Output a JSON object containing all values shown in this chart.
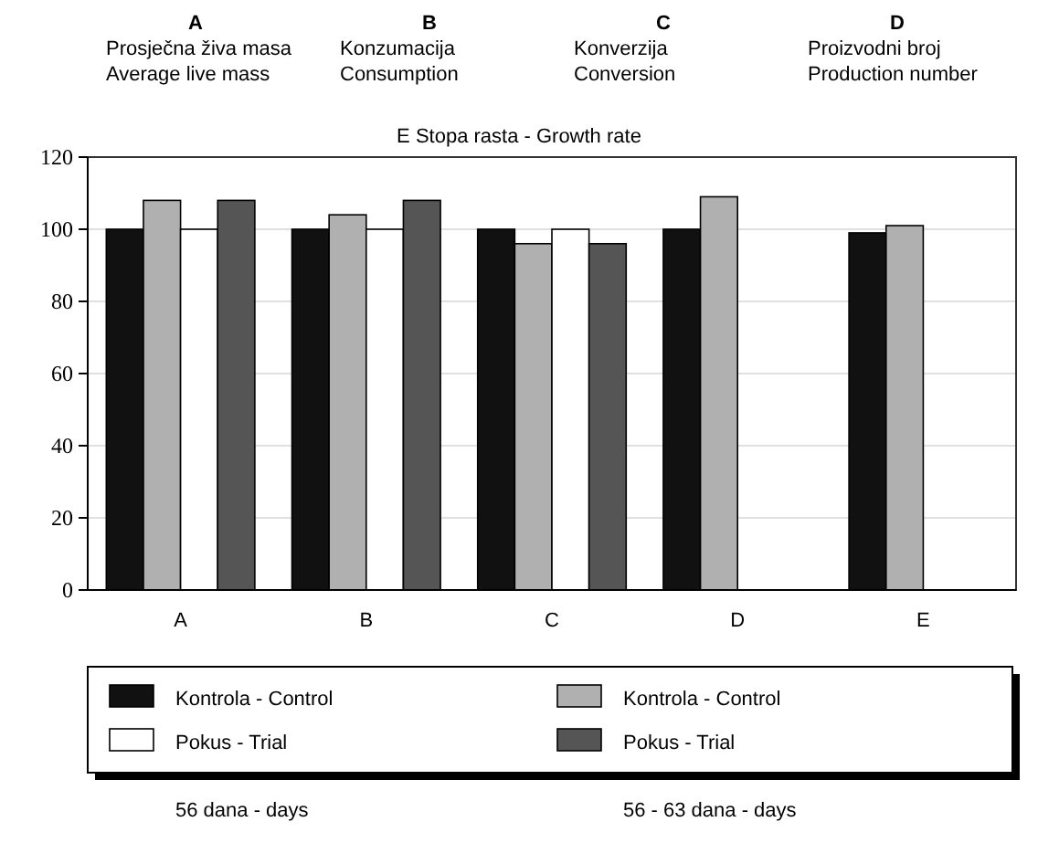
{
  "chart_data": {
    "type": "bar",
    "categories": [
      "A",
      "B",
      "C",
      "D",
      "E"
    ],
    "series": [
      {
        "name": "Kontrola - Control",
        "color": "#111111",
        "values": [
          100,
          100,
          100,
          100,
          99
        ]
      },
      {
        "name": "Kontrola - Control",
        "color": "#b0b0b0",
        "values": [
          108,
          104,
          96,
          109,
          101
        ]
      },
      {
        "name": "Pokus - Trial",
        "color": "#ffffff",
        "values": [
          100,
          100,
          100,
          null,
          null
        ]
      },
      {
        "name": "Pokus - Trial",
        "color": "#555555",
        "values": [
          108,
          108,
          96,
          null,
          null
        ]
      }
    ],
    "ylim": [
      0,
      120
    ],
    "yticks": [
      0,
      20,
      40,
      60,
      80,
      100,
      120
    ],
    "grid": "y",
    "legend": "bottom",
    "annotations": [
      "A\nProsječna živa masa\nAverage live mass",
      "B\nKonzumacija\nConsumption",
      "C\nKonverzija\nConversion",
      "D\nProizvodni broj\nProduction number",
      "E  Stopa rasta - Growth rate",
      "56 dana - days",
      "56 - 63 dana - days"
    ]
  }
}
